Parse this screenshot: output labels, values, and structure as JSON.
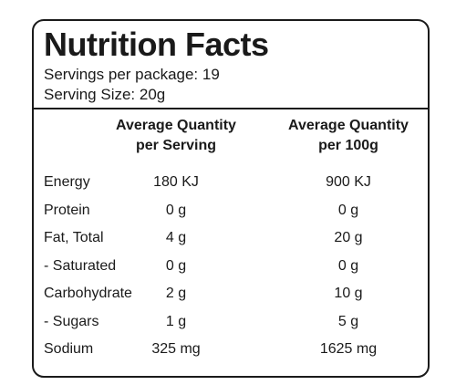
{
  "label": {
    "title": "Nutrition Facts",
    "servings_per_package": "Servings per package: 19",
    "serving_size": "Serving Size: 20g"
  },
  "columns": {
    "per_serving": [
      "Average Quantity",
      "per Serving"
    ],
    "per_100g": [
      "Average Quantity",
      "per 100g"
    ]
  },
  "rows": [
    {
      "name": "Energy",
      "per_serving": "180 KJ",
      "per_100g": "900 KJ"
    },
    {
      "name": "Protein",
      "per_serving": "0 g",
      "per_100g": "0 g"
    },
    {
      "name": "Fat, Total",
      "per_serving": "4 g",
      "per_100g": "20 g"
    },
    {
      "name": "- Saturated",
      "per_serving": "0 g",
      "per_100g": "0 g"
    },
    {
      "name": "Carbohydrate",
      "per_serving": "2 g",
      "per_100g": "10 g"
    },
    {
      "name": "- Sugars",
      "per_serving": "1 g",
      "per_100g": "5 g"
    },
    {
      "name": "Sodium",
      "per_serving": "325 mg",
      "per_100g": "1625 mg"
    }
  ]
}
